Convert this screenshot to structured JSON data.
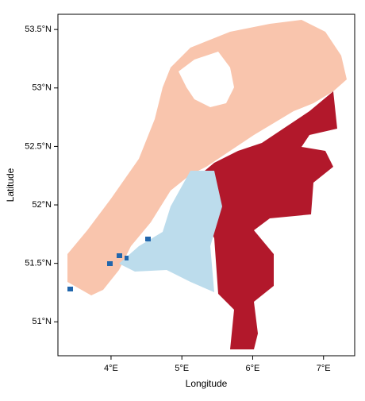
{
  "chart_data": {
    "type": "map",
    "x_label": "Longitude",
    "y_label": "Latitude",
    "xlim": [
      3.25,
      7.44
    ],
    "ylim": [
      50.71,
      53.63
    ],
    "xticks": [
      {
        "value": 4,
        "label": "4°E"
      },
      {
        "value": 5,
        "label": "5°E"
      },
      {
        "value": 6,
        "label": "6°E"
      },
      {
        "value": 7,
        "label": "7°E"
      }
    ],
    "yticks": [
      {
        "value": 51,
        "label": "51°N"
      },
      {
        "value": 51.5,
        "label": "51.5°N"
      },
      {
        "value": 52,
        "label": "52°N"
      },
      {
        "value": 52.5,
        "label": "52.5°N"
      },
      {
        "value": 53,
        "label": "53°N"
      },
      {
        "value": 53.5,
        "label": "53.5°N"
      }
    ]
  }
}
